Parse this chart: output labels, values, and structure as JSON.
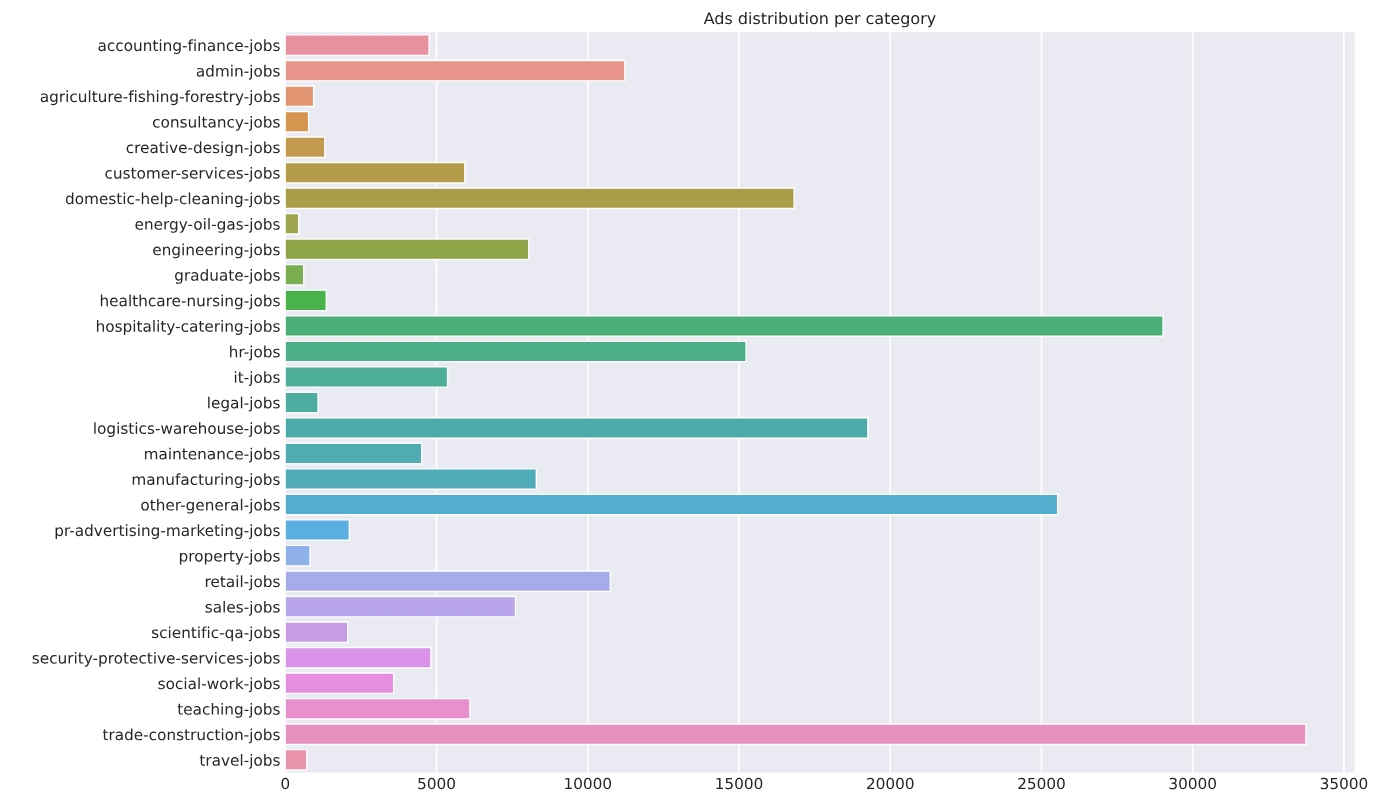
{
  "chart_data": {
    "type": "bar",
    "orientation": "horizontal",
    "title": "Ads distribution per category",
    "categories": [
      "accounting-finance-jobs",
      "admin-jobs",
      "agriculture-fishing-forestry-jobs",
      "consultancy-jobs",
      "creative-design-jobs",
      "customer-services-jobs",
      "domestic-help-cleaning-jobs",
      "energy-oil-gas-jobs",
      "engineering-jobs",
      "graduate-jobs",
      "healthcare-nursing-jobs",
      "hospitality-catering-jobs",
      "hr-jobs",
      "it-jobs",
      "legal-jobs",
      "logistics-warehouse-jobs",
      "maintenance-jobs",
      "manufacturing-jobs",
      "other-general-jobs",
      "pr-advertising-marketing-jobs",
      "property-jobs",
      "retail-jobs",
      "sales-jobs",
      "scientific-qa-jobs",
      "security-protective-services-jobs",
      "social-work-jobs",
      "teaching-jobs",
      "trade-construction-jobs",
      "travel-jobs"
    ],
    "values": [
      4755,
      11227,
      935,
      771,
      1308,
      5935,
      16822,
      444,
      8050,
      607,
      1355,
      29020,
      15235,
      5365,
      1083,
      19260,
      4508,
      8298,
      25535,
      2116,
      818,
      10745,
      7611,
      2064,
      4816,
      3582,
      6104,
      33745,
      710
    ],
    "colors": [
      "#e8929f",
      "#e8968c",
      "#e39571",
      "#d69650",
      "#c49a50",
      "#b59c4b",
      "#a99d49",
      "#9ea54c",
      "#8da547",
      "#7aae4e",
      "#4ab24a",
      "#4caf77",
      "#4caf88",
      "#4cad98",
      "#4dab9f",
      "#4caba9",
      "#4eacb3",
      "#51acba",
      "#53adcd",
      "#5aaee0",
      "#8fb1e9",
      "#a6abe9",
      "#b9a5e9",
      "#c99ae6",
      "#db92e9",
      "#e78ee0",
      "#e88fcd",
      "#e891c0",
      "#e893aa"
    ],
    "xlim": [
      0,
      35350
    ],
    "xticks": [
      0,
      5000,
      10000,
      15000,
      20000,
      25000,
      30000,
      35000
    ],
    "grid": "x"
  }
}
